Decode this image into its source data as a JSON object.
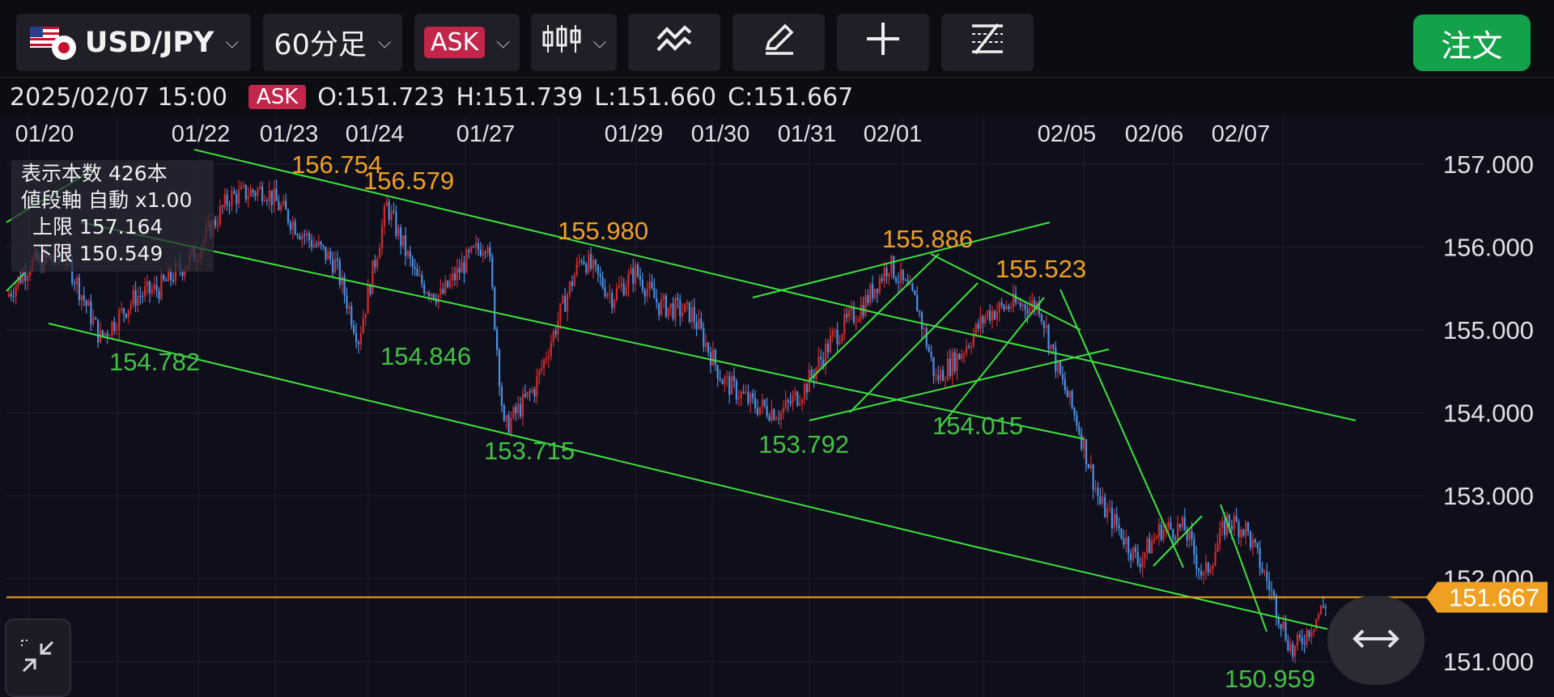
{
  "toolbar": {
    "symbol": "USD/JPY",
    "timeframe": "60分足",
    "price_side": "ASK",
    "order_label": "注文",
    "icons": [
      "flag-us-jp-icon",
      "candlestick-icon",
      "indicator-icon",
      "pencil-icon",
      "crosshair-icon",
      "settings-lines-icon"
    ],
    "accent_order": "#13a24a",
    "accent_ask": "#c2264a"
  },
  "ohlc": {
    "datetime": "2025/02/07 15:00",
    "side": "ASK",
    "open": "O:151.723",
    "high": "H:151.739",
    "low": "L:151.660",
    "close": "C:151.667"
  },
  "info": {
    "bars": "表示本数  426本",
    "axis": "値段軸  自動 x1.00",
    "upper": "上限  157.164",
    "lower": "下限  150.549"
  },
  "chart_data": {
    "type": "candlestick",
    "title": "",
    "colors": {
      "up": "#d22b2b",
      "down": "#4a90e2",
      "trendline": "#3ee13e",
      "current_line": "#f0a020",
      "high_label": "#f0a020",
      "low_label": "#44c044"
    },
    "ylim": [
      150.549,
      157.164
    ],
    "y_ticks": [
      "157.000",
      "156.000",
      "155.000",
      "154.000",
      "153.000",
      "152.000",
      "151.000"
    ],
    "x_ticks": [
      "01/20",
      "01/22",
      "01/23",
      "01/24",
      "01/27",
      "01/29",
      "01/30",
      "01/31",
      "02/01",
      "02/05",
      "02/06",
      "02/07"
    ],
    "current_price": "151.667",
    "high_labels": [
      "156.754",
      "156.579",
      "155.980",
      "155.886",
      "155.523"
    ],
    "low_labels": [
      "154.782",
      "154.846",
      "153.715",
      "153.792",
      "154.015",
      "150.959"
    ],
    "path_points": [
      {
        "i": 0,
        "p": 155.4
      },
      {
        "i": 10,
        "p": 155.8
      },
      {
        "i": 25,
        "p": 155.9
      },
      {
        "i": 40,
        "p": 154.9
      },
      {
        "i": 55,
        "p": 155.4
      },
      {
        "i": 65,
        "p": 155.5
      },
      {
        "i": 80,
        "p": 155.9
      },
      {
        "i": 95,
        "p": 156.6
      },
      {
        "i": 110,
        "p": 156.7
      },
      {
        "i": 125,
        "p": 156.2
      },
      {
        "i": 140,
        "p": 155.8
      },
      {
        "i": 150,
        "p": 154.9
      },
      {
        "i": 162,
        "p": 156.5
      },
      {
        "i": 175,
        "p": 155.6
      },
      {
        "i": 185,
        "p": 155.4
      },
      {
        "i": 195,
        "p": 155.8
      },
      {
        "i": 205,
        "p": 156.1
      },
      {
        "i": 212,
        "p": 153.8
      },
      {
        "i": 225,
        "p": 154.3
      },
      {
        "i": 236,
        "p": 155.2
      },
      {
        "i": 245,
        "p": 155.9
      },
      {
        "i": 258,
        "p": 155.4
      },
      {
        "i": 268,
        "p": 155.7
      },
      {
        "i": 278,
        "p": 155.3
      },
      {
        "i": 292,
        "p": 155.2
      },
      {
        "i": 305,
        "p": 154.4
      },
      {
        "i": 318,
        "p": 154.1
      },
      {
        "i": 330,
        "p": 154.0
      },
      {
        "i": 340,
        "p": 154.3
      },
      {
        "i": 352,
        "p": 154.9
      },
      {
        "i": 365,
        "p": 155.3
      },
      {
        "i": 376,
        "p": 155.8
      },
      {
        "i": 388,
        "p": 155.3
      },
      {
        "i": 396,
        "p": 154.4
      },
      {
        "i": 406,
        "p": 154.7
      },
      {
        "i": 418,
        "p": 155.2
      },
      {
        "i": 428,
        "p": 155.3
      },
      {
        "i": 440,
        "p": 155.3
      },
      {
        "i": 448,
        "p": 154.5
      },
      {
        "i": 456,
        "p": 153.9
      },
      {
        "i": 466,
        "p": 152.9
      },
      {
        "i": 474,
        "p": 152.6
      },
      {
        "i": 482,
        "p": 152.2
      },
      {
        "i": 492,
        "p": 152.6
      },
      {
        "i": 502,
        "p": 152.6
      },
      {
        "i": 510,
        "p": 152.0
      },
      {
        "i": 520,
        "p": 152.7
      },
      {
        "i": 528,
        "p": 152.6
      },
      {
        "i": 538,
        "p": 151.9
      },
      {
        "i": 548,
        "p": 151.1
      },
      {
        "i": 555,
        "p": 151.4
      },
      {
        "i": 562,
        "p": 151.7
      }
    ]
  }
}
